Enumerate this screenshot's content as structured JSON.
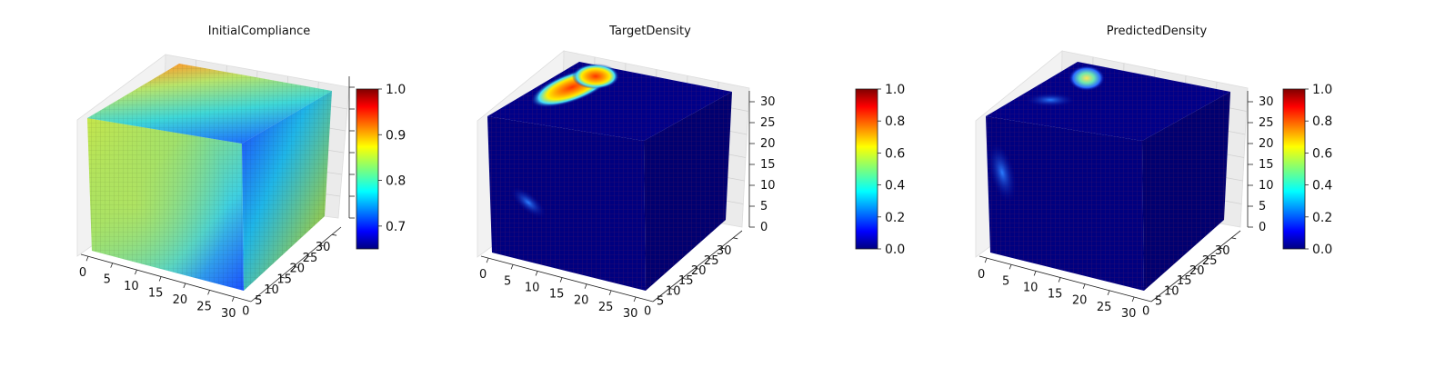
{
  "chart_data": [
    {
      "type": "voxel-3d",
      "title": "InitialCompliance",
      "x_ticks": [
        "0",
        "5",
        "10",
        "15",
        "20",
        "25",
        "30"
      ],
      "y_ticks": [
        "0",
        "5",
        "10",
        "15",
        "20",
        "25",
        "30"
      ],
      "z_ticks": [],
      "colorbar": {
        "min": 0.65,
        "max": 1.0,
        "ticks": [
          "0.7",
          "0.8",
          "0.9",
          "1.0"
        ],
        "colormap": "jet"
      }
    },
    {
      "type": "voxel-3d",
      "title": "TargetDensity",
      "x_ticks": [
        "0",
        "5",
        "10",
        "15",
        "20",
        "25",
        "30"
      ],
      "y_ticks": [
        "0",
        "5",
        "10",
        "15",
        "20",
        "25",
        "30"
      ],
      "z_ticks": [
        "0",
        "5",
        "10",
        "15",
        "20",
        "25",
        "30"
      ],
      "colorbar": {
        "min": 0.0,
        "max": 1.0,
        "ticks": [
          "0.0",
          "0.2",
          "0.4",
          "0.6",
          "0.8",
          "1.0"
        ],
        "colormap": "jet"
      }
    },
    {
      "type": "voxel-3d",
      "title": "PredictedDensity",
      "x_ticks": [
        "0",
        "5",
        "10",
        "15",
        "20",
        "25",
        "30"
      ],
      "y_ticks": [
        "0",
        "5",
        "10",
        "15",
        "20",
        "25",
        "30"
      ],
      "z_ticks": [
        "0",
        "5",
        "10",
        "15",
        "20",
        "25",
        "30"
      ],
      "colorbar": {
        "min": 0.0,
        "max": 1.0,
        "ticks": [
          "0.0",
          "0.2",
          "0.4",
          "0.6",
          "0.8",
          "1.0"
        ],
        "colormap": "jet"
      }
    }
  ]
}
